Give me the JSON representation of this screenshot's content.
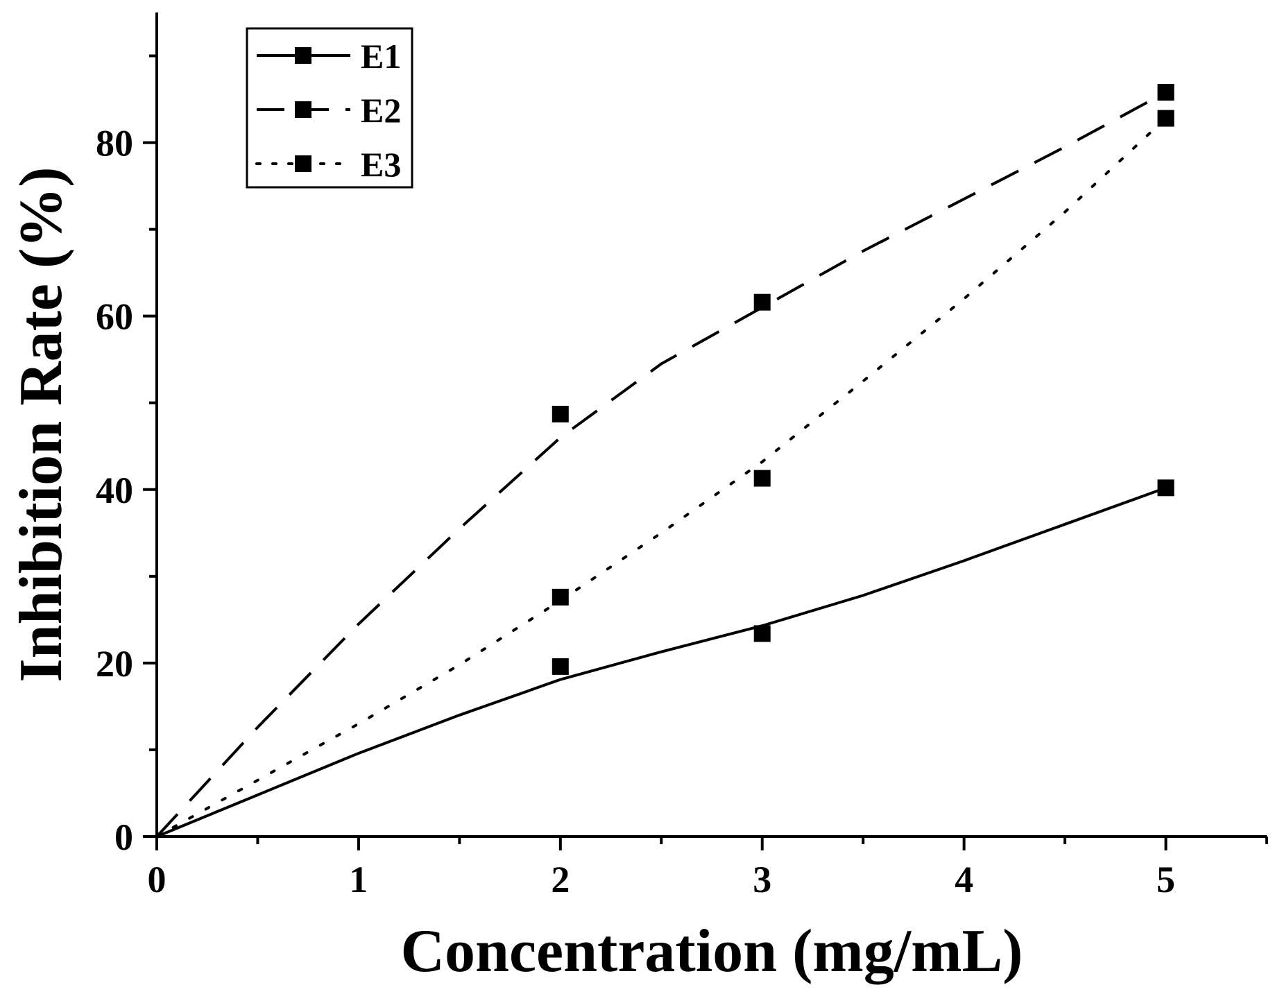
{
  "chart_data": {
    "type": "scatter",
    "title": "",
    "xlabel": "Concentration (mg/mL)",
    "ylabel": "Inhibition Rate (%)",
    "xlim": [
      0,
      5.5
    ],
    "ylim": [
      0,
      95
    ],
    "x_ticks": [
      0,
      1,
      2,
      3,
      4,
      5
    ],
    "x_tick_labels": [
      "0",
      "1",
      "2",
      "3",
      "4",
      "5"
    ],
    "x_minor_ticks": [
      0.5,
      1.5,
      2.5,
      3.5,
      4.5,
      5.5
    ],
    "y_ticks": [
      0,
      20,
      40,
      60,
      80
    ],
    "y_tick_labels": [
      "0",
      "20",
      "40",
      "60",
      "80"
    ],
    "y_minor_ticks": [
      10,
      30,
      50,
      70,
      90
    ],
    "grid": false,
    "legend_position": "top-left",
    "series": [
      {
        "name": "E1",
        "line_style": "solid",
        "marker": "square",
        "color": "#000000",
        "x": [
          2,
          3,
          5
        ],
        "y": [
          19.6,
          23.4,
          40.2
        ],
        "fit_x": [
          0,
          0.5,
          1,
          1.5,
          2,
          2.5,
          3,
          3.5,
          4,
          4.5,
          5
        ],
        "fit_y": [
          0,
          4.8,
          9.6,
          14.0,
          18.1,
          21.3,
          24.3,
          27.8,
          31.8,
          36.0,
          40.2
        ]
      },
      {
        "name": "E2",
        "line_style": "dashed",
        "marker": "square",
        "color": "#000000",
        "x": [
          2,
          3,
          5
        ],
        "y": [
          48.7,
          61.6,
          85.8
        ],
        "fit_x": [
          0,
          0.5,
          1,
          1.5,
          2,
          2.5,
          3,
          3.5,
          4,
          4.5,
          5
        ],
        "fit_y": [
          0,
          12.6,
          24.5,
          35.5,
          46.0,
          54.5,
          61.0,
          67.5,
          73.5,
          79.5,
          85.8
        ]
      },
      {
        "name": "E3",
        "line_style": "dotted",
        "marker": "square",
        "color": "#000000",
        "x": [
          2,
          3,
          5
        ],
        "y": [
          27.6,
          41.3,
          82.8
        ],
        "fit_x": [
          0,
          0.5,
          1,
          1.5,
          2,
          2.5,
          3,
          3.5,
          4,
          4.5,
          5
        ],
        "fit_y": [
          0,
          6.5,
          13.0,
          19.8,
          27.2,
          35.0,
          43.2,
          52.5,
          62.0,
          72.0,
          82.8
        ]
      }
    ]
  }
}
